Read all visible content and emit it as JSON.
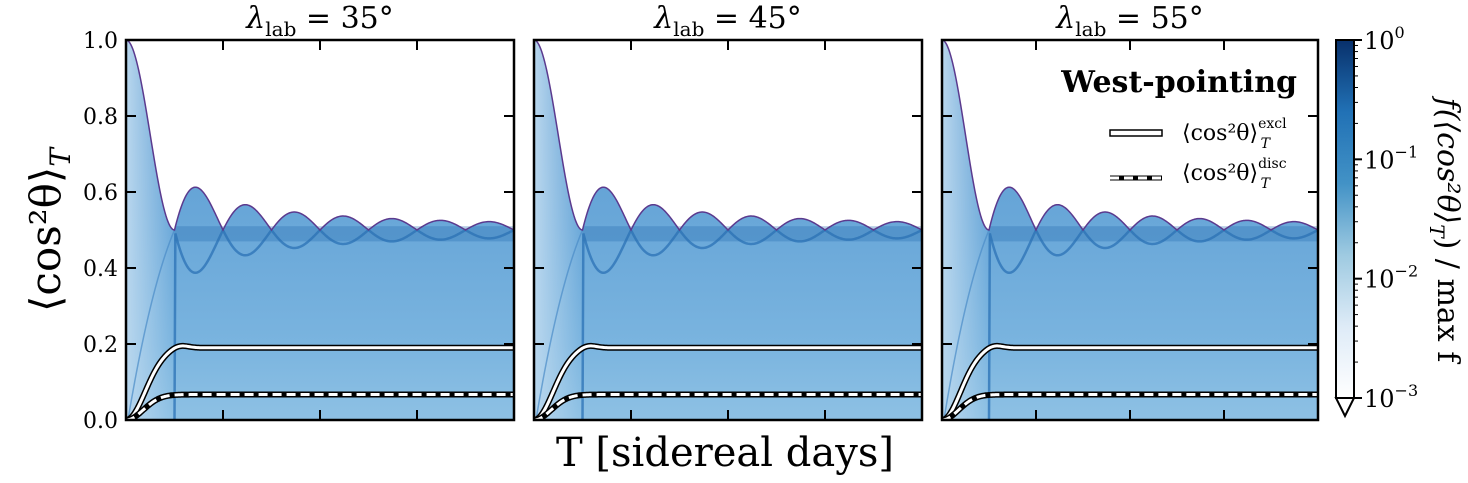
{
  "chart_data": {
    "type": "heatmap",
    "figure_title": "",
    "xlabel": "T [sidereal days]",
    "ylabel": "⟨cos²θ⟩",
    "ylabel_sub": "T",
    "ylim": [
      0,
      1.0
    ],
    "yticks": [
      0.0,
      0.2,
      0.4,
      0.6,
      0.8,
      1.0
    ],
    "ytick_labels": [
      "0.0",
      "0.2",
      "0.4",
      "0.6",
      "0.8",
      "1.0"
    ],
    "xlim": [
      0,
      4
    ],
    "xticks": [
      1,
      2,
      3
    ],
    "annotation": "West-pointing",
    "legend": {
      "position": "upper-right",
      "entries": [
        {
          "label": "⟨cos²θ⟩",
          "sub": "T",
          "sup": "excl",
          "style": "solid"
        },
        {
          "label": "⟨cos²θ⟩",
          "sub": "T",
          "sup": "disc",
          "style": "dashed"
        }
      ]
    },
    "colorbar": {
      "label": "f(⟨cos²θ⟩",
      "label_sub": "T",
      "label_tail": ") / max f",
      "scale": "log",
      "range": [
        0.001,
        1
      ],
      "ticks": [
        {
          "value": 1,
          "base": "10",
          "exp": "0"
        },
        {
          "value": 0.1,
          "base": "10",
          "exp": "−1"
        },
        {
          "value": 0.01,
          "base": "10",
          "exp": "−2"
        },
        {
          "value": 0.001,
          "base": "10",
          "exp": "−3"
        }
      ],
      "colors": [
        "#ffffff",
        "#deebf7",
        "#9ecae1",
        "#4292c6",
        "#2171b5",
        "#08306b"
      ]
    },
    "panels": [
      {
        "title_symbol": "λ",
        "title_sub": "lab",
        "title_value": " = 35°",
        "lambda_deg": 35,
        "excl_plateau": 0.19,
        "disc_plateau": 0.067
      },
      {
        "title_symbol": "λ",
        "title_sub": "lab",
        "title_value": " = 45°",
        "lambda_deg": 45,
        "excl_plateau": 0.19,
        "disc_plateau": 0.067
      },
      {
        "title_symbol": "λ",
        "title_sub": "lab",
        "title_value": " = 55°",
        "lambda_deg": 55,
        "excl_plateau": 0.19,
        "disc_plateau": 0.067
      }
    ],
    "upper_envelope": {
      "description_values": "max ⟨cos²θ⟩ vs T",
      "x": [
        0,
        0.25,
        0.5,
        0.75,
        1.0,
        1.25,
        1.5,
        1.75,
        2.0,
        2.25,
        2.5,
        2.75,
        3.0,
        3.25,
        3.5,
        3.75,
        4.0
      ],
      "y": [
        1.0,
        0.81,
        0.5,
        0.61,
        0.5,
        0.565,
        0.5,
        0.545,
        0.5,
        0.535,
        0.5,
        0.528,
        0.5,
        0.523,
        0.5,
        0.52,
        0.5
      ]
    },
    "lower_envelope": {
      "x": [
        0.5,
        0.75,
        1.0,
        1.25,
        1.5,
        1.75,
        2.0,
        2.25,
        2.5,
        2.75,
        3.0,
        3.25,
        3.5,
        3.75,
        4.0
      ],
      "y": [
        0.5,
        0.39,
        0.5,
        0.435,
        0.5,
        0.455,
        0.5,
        0.465,
        0.5,
        0.472,
        0.5,
        0.477,
        0.5,
        0.48,
        0.5
      ]
    }
  }
}
